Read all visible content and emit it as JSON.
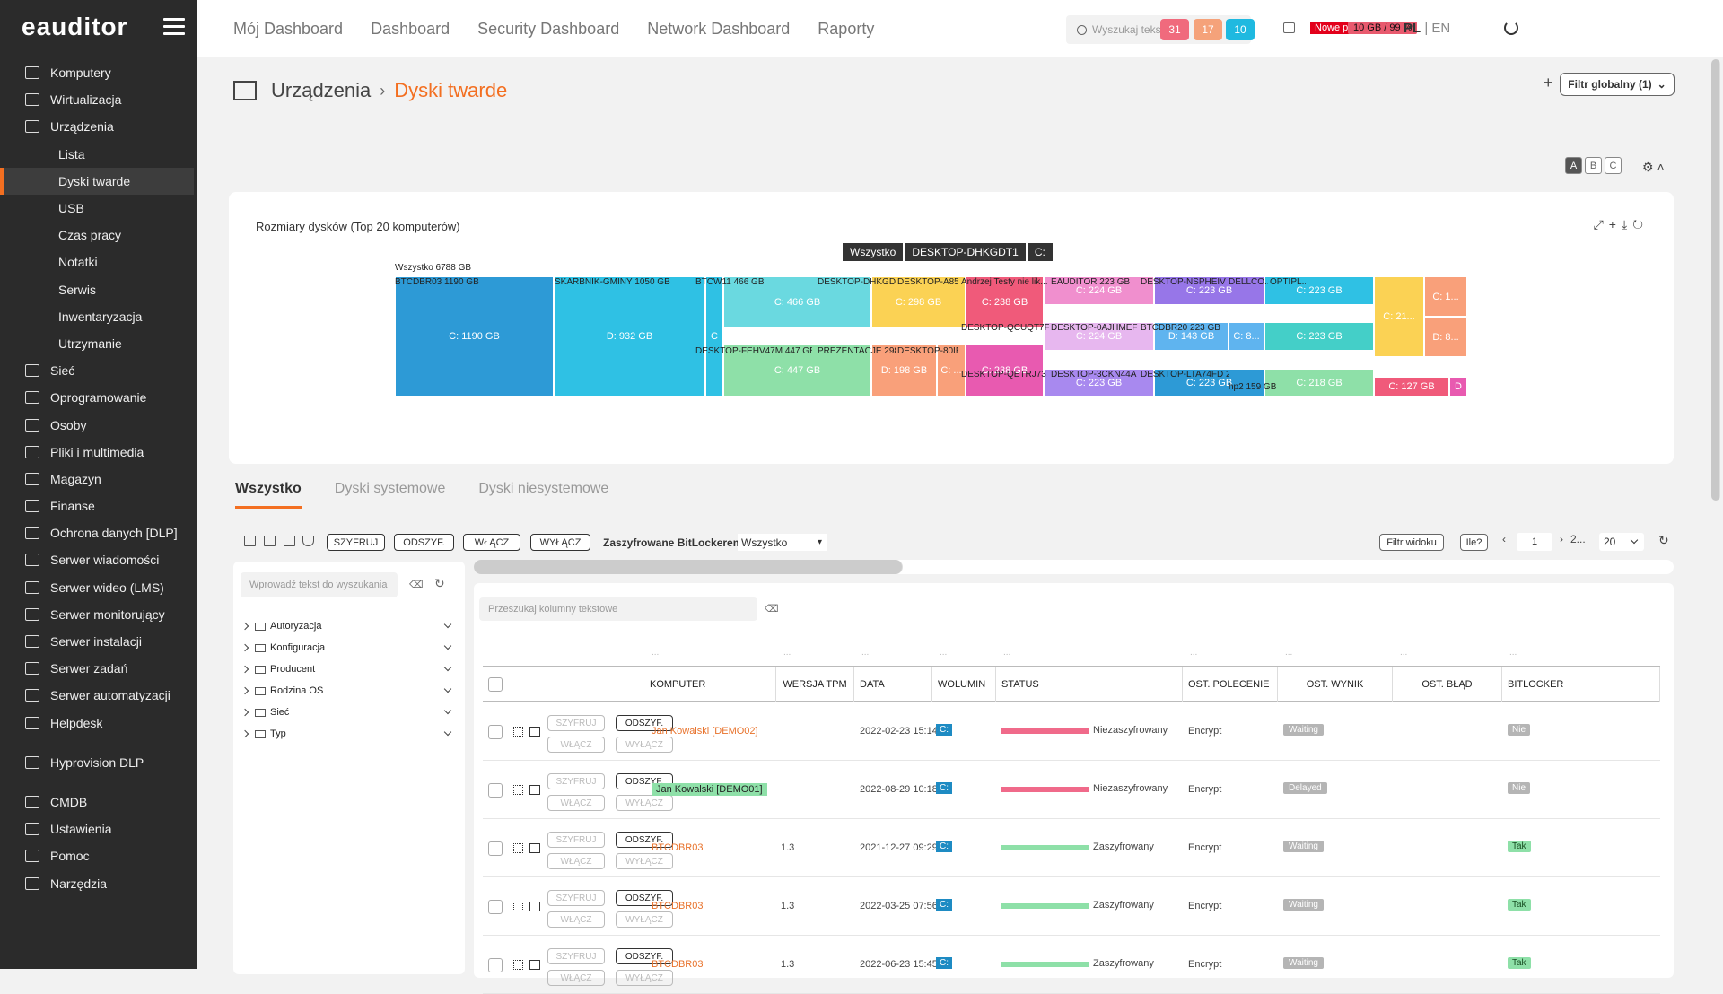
{
  "app": {
    "logo": "eauditor"
  },
  "sidebar": {
    "items": [
      {
        "label": "Komputery",
        "icon": "monitor-icon",
        "level": 0
      },
      {
        "label": "Wirtualizacja",
        "icon": "server-icon",
        "level": 0
      },
      {
        "label": "Urządzenia",
        "icon": "devices-icon",
        "level": 0
      },
      {
        "label": "Lista",
        "level": 1
      },
      {
        "label": "Dyski twarde",
        "level": 1,
        "active": true
      },
      {
        "label": "USB",
        "level": 1
      },
      {
        "label": "Czas pracy",
        "level": 1
      },
      {
        "label": "Notatki",
        "level": 1
      },
      {
        "label": "Serwis",
        "level": 1
      },
      {
        "label": "Inwentaryzacja",
        "level": 1
      },
      {
        "label": "Utrzymanie",
        "level": 1
      },
      {
        "label": "Sieć",
        "icon": "network-icon",
        "level": 0
      },
      {
        "label": "Oprogramowanie",
        "icon": "software-icon",
        "level": 0
      },
      {
        "label": "Osoby",
        "icon": "people-icon",
        "level": 0
      },
      {
        "label": "Pliki i multimedia",
        "icon": "files-icon",
        "level": 0
      },
      {
        "label": "Magazyn",
        "icon": "warehouse-icon",
        "level": 0
      },
      {
        "label": "Finanse",
        "icon": "finance-icon",
        "level": 0
      },
      {
        "label": "Ochrona danych [DLP]",
        "icon": "shield-icon",
        "level": 0
      },
      {
        "label": "Serwer wiadomości",
        "icon": "message-icon",
        "level": 0
      },
      {
        "label": "Serwer wideo (LMS)",
        "icon": "video-icon",
        "level": 0
      },
      {
        "label": "Serwer monitorujący",
        "icon": "monitoring-icon",
        "level": 0
      },
      {
        "label": "Serwer instalacji",
        "icon": "install-icon",
        "level": 0
      },
      {
        "label": "Serwer zadań",
        "icon": "tasks-icon",
        "level": 0
      },
      {
        "label": "Serwer automatyzacji",
        "icon": "automation-icon",
        "level": 0
      },
      {
        "label": "Helpdesk",
        "icon": "helpdesk-icon",
        "level": 0
      },
      {
        "gap": true
      },
      {
        "label": "Hyprovision DLP",
        "icon": "hyprovision-icon",
        "level": 0
      },
      {
        "gap": true
      },
      {
        "label": "CMDB",
        "icon": "database-icon",
        "level": 0
      },
      {
        "label": "Ustawienia",
        "icon": "gear-icon",
        "level": 0
      },
      {
        "label": "Pomoc",
        "icon": "help-icon",
        "level": 0
      },
      {
        "label": "Narzędzia",
        "icon": "tools-icon",
        "level": 0
      }
    ]
  },
  "topnav": [
    "Mój Dashboard",
    "Dashboard",
    "Security Dashboard",
    "Network Dashboard",
    "Raporty"
  ],
  "search": {
    "placeholder": "Wyszukaj tekst"
  },
  "notifications": {
    "label": "Nowe powiadom.: 1",
    "counts": [
      {
        "v": "31",
        "color": "#f06a7d"
      },
      {
        "v": "17",
        "color": "#f5a27a"
      },
      {
        "v": "10",
        "color": "#1fb9e0"
      }
    ],
    "disk": "10 GB / 99 %"
  },
  "lang": {
    "pl": "PL",
    "en": "EN"
  },
  "breadcrumb": {
    "parent": "Urządzenia",
    "current": "Dyski twarde"
  },
  "global_filter": "Filtr globalny (1)",
  "views": [
    "A",
    "B",
    "C"
  ],
  "card": {
    "title": "Rozmiary dysków (Top 20 komputerów)",
    "crumbs": [
      "Wszystko",
      "DESKTOP-DHKGDT1",
      "C:"
    ],
    "total": "Wszystko 6788 GB"
  },
  "treemap": {
    "labels": [
      {
        "t": "BTCDBR03 1190 GB",
        "x": 0,
        "y": -17,
        "w": 175
      },
      {
        "t": "SKARBNIK-GMINY 1050 GB",
        "x": 178,
        "y": -17,
        "w": 150
      },
      {
        "t": "BTCW11 466 GB",
        "x": 335,
        "y": -17,
        "w": 130
      },
      {
        "t": "DESKTOP-DHKGDT1 ...",
        "x": 471,
        "y": -17,
        "w": 88
      },
      {
        "t": "DESKTOP-A858...",
        "x": 560,
        "y": -17,
        "w": 68
      },
      {
        "t": "Andrzej Testy nie lik...",
        "x": 631,
        "y": -17,
        "w": 98
      },
      {
        "t": "EAUDITOR 223 GB",
        "x": 731,
        "y": -17,
        "w": 98
      },
      {
        "t": "DESKTOP-NSPHEIV 223...",
        "x": 831,
        "y": -17,
        "w": 98
      },
      {
        "t": "DELLCO...",
        "x": 929,
        "y": -17,
        "w": 44
      },
      {
        "t": "OPTIPL...",
        "x": 975,
        "y": -17,
        "w": 40
      },
      {
        "t": "DESKTOP-FEHV47M 447 GB",
        "x": 335,
        "y": 60,
        "w": 130
      },
      {
        "t": "PREZENTACJE 298 GB",
        "x": 471,
        "y": 60,
        "w": 88
      },
      {
        "t": "DESKTOP-80IR5...",
        "x": 560,
        "y": 60,
        "w": 68
      },
      {
        "t": "DESKTOP-QCUQT7F 22...",
        "x": 631,
        "y": 34,
        "w": 98
      },
      {
        "t": "DESKTOP-0AJHMEF 22...",
        "x": 731,
        "y": 34,
        "w": 98
      },
      {
        "t": "BTCDBR20 223 GB",
        "x": 831,
        "y": 34,
        "w": 98
      },
      {
        "t": "DESKTOP-QETRJ73 223...",
        "x": 631,
        "y": 86,
        "w": 98
      },
      {
        "t": "DESKTOP-3CKN44A 22...",
        "x": 731,
        "y": 86,
        "w": 98
      },
      {
        "t": "DESKTOP-LTA74FD 218...",
        "x": 831,
        "y": 86,
        "w": 98
      },
      {
        "t": "hp2 159 GB",
        "x": 929,
        "y": 100,
        "w": 86
      }
    ],
    "tiles": [
      {
        "t": "C: 1190 GB",
        "x": 0,
        "y": 0,
        "w": 177,
        "h": 134,
        "c": "#2d9ad6"
      },
      {
        "t": "D: 932 GB",
        "x": 177,
        "y": 0,
        "w": 169,
        "h": 134,
        "c": "#2fc1e4"
      },
      {
        "t": "C",
        "x": 346,
        "y": 0,
        "w": 20,
        "h": 134,
        "c": "#2fc1e4"
      },
      {
        "t": "C: 466 GB",
        "x": 366,
        "y": 0,
        "w": 165,
        "h": 58,
        "c": "#6ad9e0"
      },
      {
        "t": "C: 447 GB",
        "x": 366,
        "y": 76,
        "w": 165,
        "h": 58,
        "c": "#8ee0a8"
      },
      {
        "t": "C: 298 GB",
        "x": 531,
        "y": 0,
        "w": 105,
        "h": 58,
        "c": "#fbd254"
      },
      {
        "t": "D: 198 GB",
        "x": 531,
        "y": 76,
        "w": 73,
        "h": 58,
        "c": "#f9a07a"
      },
      {
        "t": "C: ...",
        "x": 604,
        "y": 76,
        "w": 32,
        "h": 58,
        "c": "#f9a07a"
      },
      {
        "t": "C: 238 GB",
        "x": 636,
        "y": 0,
        "w": 87,
        "h": 58,
        "c": "#f05a7a"
      },
      {
        "t": "C: 238 GB",
        "x": 636,
        "y": 76,
        "w": 87,
        "h": 58,
        "c": "#e85ab0"
      },
      {
        "t": "C: 224 GB",
        "x": 723,
        "y": 0,
        "w": 123,
        "h": 32,
        "c": "#f08fce"
      },
      {
        "t": "C: 224 GB",
        "x": 723,
        "y": 51,
        "w": 123,
        "h": 32,
        "c": "#e7b7ef"
      },
      {
        "t": "C: 223 GB",
        "x": 723,
        "y": 103,
        "w": 123,
        "h": 31,
        "c": "#a889ef"
      },
      {
        "t": "C: 223 GB",
        "x": 846,
        "y": 0,
        "w": 123,
        "h": 32,
        "c": "#9776e8"
      },
      {
        "t": "D: 143 GB",
        "x": 846,
        "y": 51,
        "w": 83,
        "h": 32,
        "c": "#5fb4ef"
      },
      {
        "t": "C: 8...",
        "x": 929,
        "y": 51,
        "w": 40,
        "h": 32,
        "c": "#5fb4ef"
      },
      {
        "t": "C: 223 GB",
        "x": 846,
        "y": 103,
        "w": 123,
        "h": 31,
        "c": "#2d9ad6"
      },
      {
        "t": "C: 223 GB",
        "x": 969,
        "y": 0,
        "w": 122,
        "h": 32,
        "c": "#2fc1e4"
      },
      {
        "t": "C: 223 GB",
        "x": 969,
        "y": 51,
        "w": 122,
        "h": 32,
        "c": "#44cfc8"
      },
      {
        "t": "C: 218 GB",
        "x": 969,
        "y": 103,
        "w": 122,
        "h": 31,
        "c": "#8ee0a8"
      },
      {
        "t": "C: 21...",
        "x": 1091,
        "y": 0,
        "w": 56,
        "h": 90,
        "c": "#fbd254"
      },
      {
        "t": "C: 1...",
        "x": 1147,
        "y": 0,
        "w": 48,
        "h": 45,
        "c": "#f9a07a"
      },
      {
        "t": "D: 8...",
        "x": 1147,
        "y": 45,
        "w": 48,
        "h": 45,
        "c": "#f9a07a"
      },
      {
        "t": "C: 127 GB",
        "x": 1091,
        "y": 112,
        "w": 84,
        "h": 22,
        "c": "#f05a7a"
      },
      {
        "t": "D",
        "x": 1175,
        "y": 112,
        "w": 20,
        "h": 22,
        "c": "#e85ab0"
      }
    ]
  },
  "tabs": [
    "Wszystko",
    "Dyski systemowe",
    "Dyski niesystemowe"
  ],
  "toolbar": {
    "buttons": [
      "SZYFRUJ",
      "ODSZYF.",
      "WŁĄCZ",
      "WYŁĄCZ"
    ],
    "bitlocker_label": "Zaszyfrowane BitLockerem",
    "bitlocker_value": "Wszystko",
    "view_filter": "Filtr widoku",
    "how_many": "Ile?",
    "page": "1",
    "page_next": "2...",
    "page_size": "20"
  },
  "left": {
    "search_placeholder": "Wprowadź tekst do wyszukania",
    "tree": [
      "Autoryzacja",
      "Konfiguracja",
      "Producent",
      "Rodzina OS",
      "Sieć",
      "Typ"
    ]
  },
  "table": {
    "search_placeholder": "Przeszukaj kolumny tekstowe",
    "headers": [
      "KOMPUTER",
      "WERSJA TPM",
      "DATA",
      "WOLUMIN",
      "STATUS",
      "OST. POLECENIE",
      "OST. WYNIK",
      "OST. BŁĄD",
      "BITLOCKER"
    ],
    "action_labels": [
      "SZYFRUJ",
      "ODSZYF.",
      "WŁĄCZ",
      "WYŁĄCZ"
    ],
    "rows": [
      {
        "computer": "Jan Kowalski [DEMO02]",
        "tpm": "",
        "date": "2022-02-23 15:14",
        "vol": "C:",
        "status": "Niezaszyfrowany",
        "status_color": "#f06a8a",
        "cmd": "Encrypt",
        "result": "Waiting",
        "bl": "Nie",
        "green": false
      },
      {
        "computer": "Jan Kowalski [DEMO01]",
        "tpm": "",
        "date": "2022-08-29 10:18",
        "vol": "C:",
        "status": "Niezaszyfrowany",
        "status_color": "#f06a8a",
        "cmd": "Encrypt",
        "result": "Delayed",
        "bl": "Nie",
        "green": true
      },
      {
        "computer": "BTCDBR03",
        "tpm": "1.3",
        "date": "2021-12-27 09:29",
        "vol": "C:",
        "status": "Zaszyfrowany",
        "status_color": "#8ee0a8",
        "cmd": "Encrypt",
        "result": "Waiting",
        "bl": "Tak",
        "green": false
      },
      {
        "computer": "BTCDBR03",
        "tpm": "1.3",
        "date": "2022-03-25 07:56",
        "vol": "C:",
        "status": "Zaszyfrowany",
        "status_color": "#8ee0a8",
        "cmd": "Encrypt",
        "result": "Waiting",
        "bl": "Tak",
        "green": false
      },
      {
        "computer": "BTCDBR03",
        "tpm": "1.3",
        "date": "2022-06-23 15:45",
        "vol": "C:",
        "status": "Zaszyfrowany",
        "status_color": "#8ee0a8",
        "cmd": "Encrypt",
        "result": "Waiting",
        "bl": "Tak",
        "green": false
      }
    ]
  }
}
